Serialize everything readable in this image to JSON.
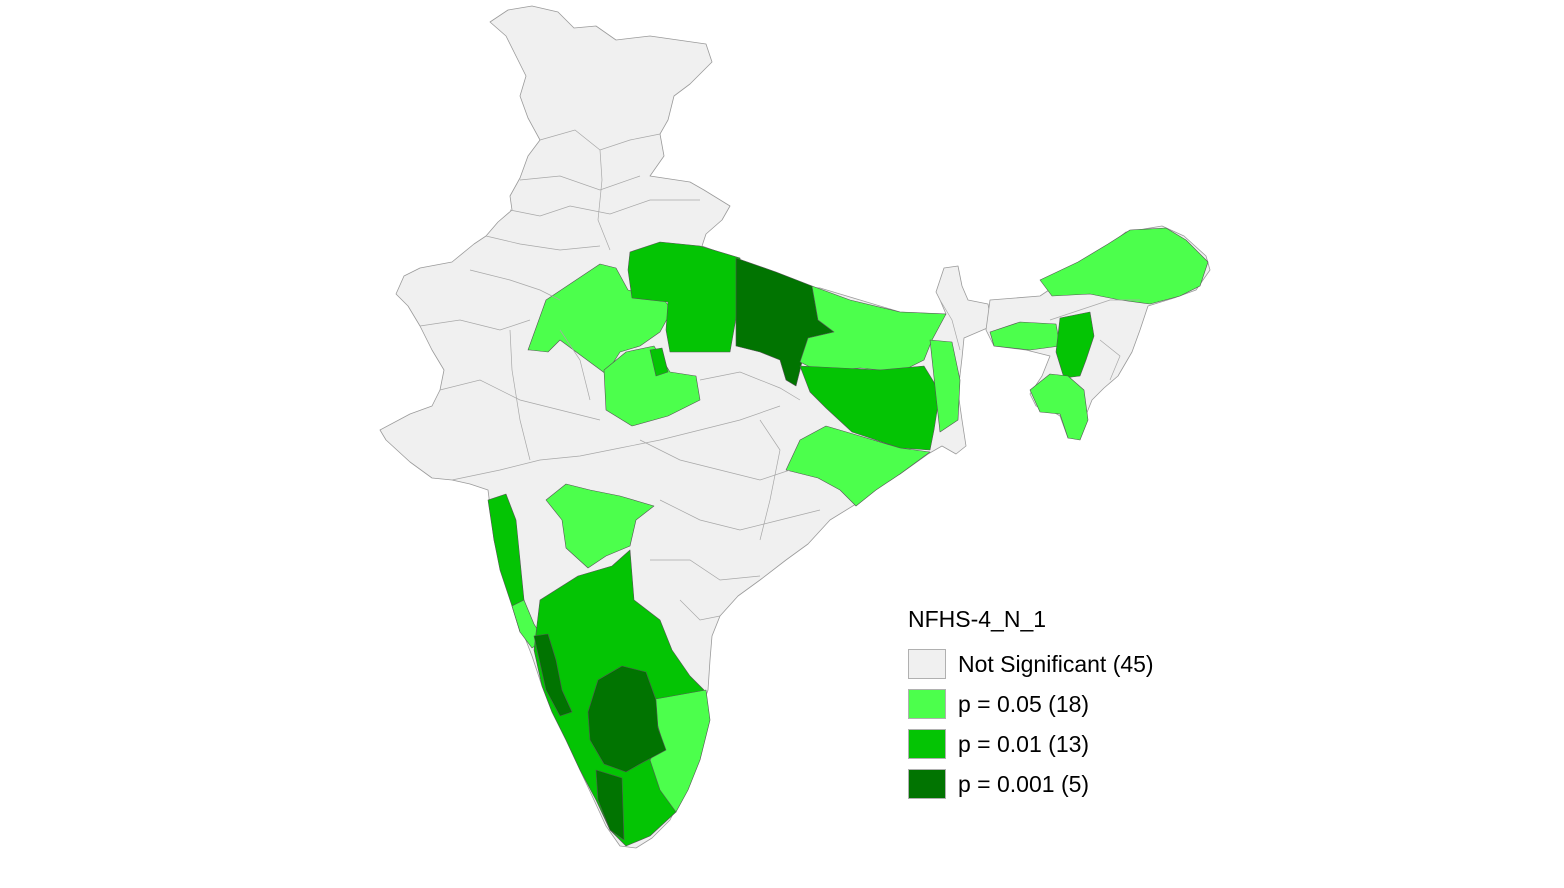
{
  "legend": {
    "title": "NFHS-4_N_1",
    "items": [
      {
        "key": "ns",
        "label": "Not Significant (45)",
        "color": "#f0f0f0"
      },
      {
        "key": "p05",
        "label": "p = 0.05 (18)",
        "color": "#4cff4c"
      },
      {
        "key": "p01",
        "label": "p = 0.01 (13)",
        "color": "#04c404"
      },
      {
        "key": "p001",
        "label": "p = 0.001 (5)",
        "color": "#017401"
      }
    ]
  },
  "colors": {
    "background": "#ffffff",
    "boundary": "#9a9a9a"
  }
}
